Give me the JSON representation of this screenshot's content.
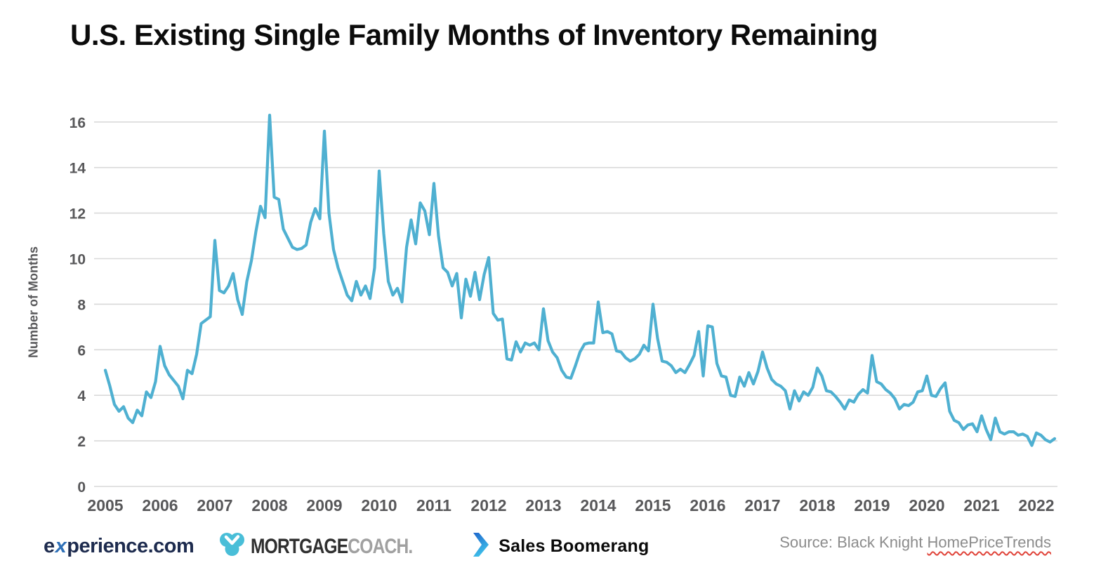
{
  "chart_data": {
    "type": "line",
    "title": "U.S. Existing Single Family Months of Inventory Remaining",
    "ylabel": "Number of Months",
    "xlabel": "",
    "frequency": "monthly",
    "x_start": "2005-01",
    "x_end": "2022-05",
    "x_tick_labels": [
      "2005",
      "2006",
      "2007",
      "2008",
      "2009",
      "2010",
      "2011",
      "2012",
      "2013",
      "2014",
      "2015",
      "2016",
      "2017",
      "2018",
      "2019",
      "2020",
      "2021",
      "2022"
    ],
    "y_ticks": [
      0,
      2,
      4,
      6,
      8,
      10,
      12,
      14,
      16
    ],
    "ylim": [
      0,
      16.6
    ],
    "grid": "horizontal",
    "legend": "none",
    "values": [
      5.1,
      4.4,
      3.6,
      3.3,
      3.5,
      3.0,
      2.8,
      3.35,
      3.1,
      4.15,
      3.9,
      4.6,
      6.15,
      5.3,
      4.9,
      4.65,
      4.4,
      3.85,
      5.1,
      4.95,
      5.8,
      7.15,
      7.3,
      7.45,
      10.8,
      8.6,
      8.5,
      8.8,
      9.35,
      8.2,
      7.55,
      9.0,
      9.9,
      11.2,
      12.3,
      11.8,
      16.3,
      12.7,
      12.6,
      11.3,
      10.9,
      10.5,
      10.4,
      10.45,
      10.6,
      11.6,
      12.2,
      11.75,
      15.6,
      12.0,
      10.4,
      9.6,
      9.0,
      8.4,
      8.15,
      9.0,
      8.4,
      8.8,
      8.25,
      9.6,
      13.85,
      11.1,
      9.0,
      8.4,
      8.7,
      8.1,
      10.5,
      11.7,
      10.65,
      12.45,
      12.1,
      11.05,
      13.3,
      11.0,
      9.6,
      9.4,
      8.8,
      9.35,
      7.4,
      9.1,
      8.35,
      9.4,
      8.2,
      9.3,
      10.05,
      7.6,
      7.3,
      7.35,
      5.6,
      5.55,
      6.35,
      5.9,
      6.3,
      6.2,
      6.3,
      6.0,
      7.8,
      6.4,
      5.9,
      5.65,
      5.1,
      4.8,
      4.75,
      5.3,
      5.9,
      6.25,
      6.3,
      6.3,
      8.1,
      6.75,
      6.8,
      6.7,
      5.95,
      5.9,
      5.65,
      5.5,
      5.6,
      5.8,
      6.2,
      5.95,
      8.0,
      6.5,
      5.5,
      5.45,
      5.3,
      5.0,
      5.15,
      5.0,
      5.35,
      5.75,
      6.8,
      4.85,
      7.05,
      7.0,
      5.4,
      4.85,
      4.8,
      4.0,
      3.95,
      4.8,
      4.4,
      5.0,
      4.5,
      5.05,
      5.9,
      5.2,
      4.7,
      4.5,
      4.4,
      4.2,
      3.4,
      4.2,
      3.75,
      4.15,
      4.0,
      4.35,
      5.2,
      4.85,
      4.2,
      4.15,
      3.95,
      3.7,
      3.4,
      3.8,
      3.7,
      4.05,
      4.25,
      4.1,
      5.75,
      4.6,
      4.5,
      4.25,
      4.1,
      3.85,
      3.4,
      3.6,
      3.55,
      3.7,
      4.15,
      4.2,
      4.85,
      4.0,
      3.95,
      4.3,
      4.55,
      3.3,
      2.9,
      2.8,
      2.5,
      2.7,
      2.75,
      2.4,
      3.1,
      2.5,
      2.05,
      3.0,
      2.4,
      2.3,
      2.4,
      2.4,
      2.25,
      2.3,
      2.2,
      1.8,
      2.35,
      2.25,
      2.05,
      1.95,
      2.1
    ]
  },
  "colors": {
    "line": "#4fb0d1",
    "grid": "#d9d9d9",
    "axis_text": "#58585a",
    "title": "#0b0b0b",
    "source": "#8c8c8c",
    "experience_navy": "#1d2b4e",
    "experience_x": "#2e70b8",
    "mc_teal": "#49bed8",
    "mc_dark": "#2f2f2f",
    "mc_gray": "#a0a0a0",
    "sb_blue_dark": "#1e66cc",
    "sb_blue_light": "#3fc1ea",
    "squiggle": "#e0443a"
  },
  "footer": {
    "logo_experience": {
      "pre": "e",
      "x": "x",
      "post": "perience.com"
    },
    "logo_mortgagecoach": {
      "part1": "MORTGAGE",
      "part2": "COACH."
    },
    "logo_salesboomerang": "Sales Boomerang",
    "source_prefix": "Source: Black Knight ",
    "source_highlight": "HomePriceTrends"
  }
}
